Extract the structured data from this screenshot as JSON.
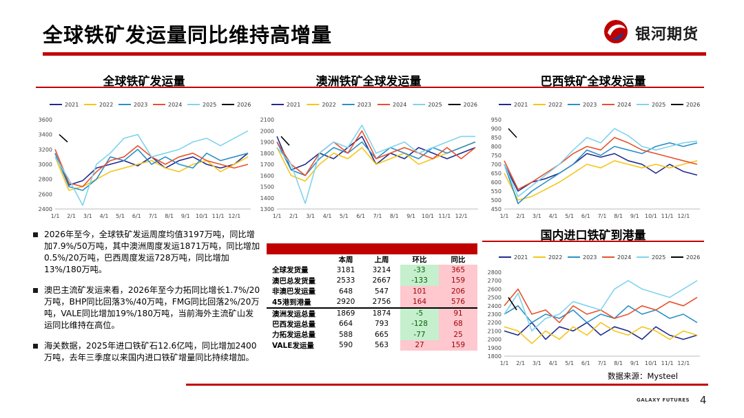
{
  "page": {
    "title": "全球铁矿发运量同比维持高增量",
    "logo_text": "银河期货",
    "source": "数据来源：Mysteel",
    "footer_brand": "GALAXY FUTURES",
    "page_number": "4"
  },
  "colors": {
    "accent": "#c00000",
    "s2021": "#1f2a8c",
    "s2022": "#f5c518",
    "s2023": "#2a8fc7",
    "s2024": "#e8502a",
    "s2025": "#7fd3ee",
    "s2026": "#000000"
  },
  "bullets": [
    "2026年至今，全球铁矿发运周度均值3197万吨，同比增加7.9%/50万吨，其中澳洲周度发运1871万吨，同比增加0.5%/20万吨，巴西周度发运728万吨，同比增加13%/180万吨。",
    "澳巴主流矿发运来看，2026年至今力拓同比增长1.7%/20万吨，BHP同比回落3%/40万吨，FMG同比回落2%/20万吨，VALE同比增加19%/180万吨，当前海外主流矿山发运同比维持在高位。",
    "海关数据，2025年进口铁矿石12.6亿吨，同比增加2400万吨，去年三季度以来国内进口铁矿增量同比持续增加。"
  ],
  "table": {
    "headers": [
      "",
      "本周",
      "上周",
      "环比",
      "同比"
    ],
    "rows": [
      {
        "name": "全球发货量",
        "cur": "3181",
        "prev": "3214",
        "wow": "-33",
        "yoy": "365"
      },
      {
        "name": "澳巴总发货量",
        "cur": "2533",
        "prev": "2667",
        "wow": "-133",
        "yoy": "159"
      },
      {
        "name": "非澳巴发运量",
        "cur": "648",
        "prev": "547",
        "wow": "101",
        "yoy": "206"
      },
      {
        "name": "45港到港量",
        "cur": "2920",
        "prev": "2756",
        "wow": "164",
        "yoy": "576"
      },
      {
        "name": "澳洲发运总量",
        "cur": "1869",
        "prev": "1874",
        "wow": "-5",
        "yoy": "91"
      },
      {
        "name": "巴西发运总量",
        "cur": "664",
        "prev": "793",
        "wow": "-128",
        "yoy": "68"
      },
      {
        "name": "力拓发运总量",
        "cur": "588",
        "prev": "665",
        "wow": "-77",
        "yoy": "25"
      },
      {
        "name": "VALE发运量",
        "cur": "590",
        "prev": "563",
        "wow": "27",
        "yoy": "159"
      }
    ]
  },
  "chart_data": [
    {
      "type": "line",
      "title": "全球铁矿发运量",
      "x_ticks": [
        "1/1",
        "2/1",
        "3/1",
        "4/1",
        "5/1",
        "6/1",
        "7/1",
        "8/1",
        "9/1",
        "10/1",
        "11/1",
        "12/1"
      ],
      "y_ticks": [
        "3600",
        "3400",
        "3200",
        "3000",
        "2800",
        "2600",
        "2400"
      ],
      "ylim": [
        2400,
        3600
      ],
      "series": [
        {
          "name": "2021",
          "values": [
            3150,
            2720,
            2780,
            2950,
            3000,
            3050,
            2980,
            3100,
            2950,
            3050,
            3100,
            3000,
            2950,
            3000,
            3150
          ]
        },
        {
          "name": "2022",
          "values": [
            3100,
            2650,
            2700,
            2800,
            2900,
            2950,
            3000,
            3050,
            2950,
            2900,
            3000,
            3050,
            2900,
            3000,
            3100
          ]
        },
        {
          "name": "2023",
          "values": [
            3150,
            2700,
            2650,
            2800,
            3100,
            3050,
            3200,
            3000,
            3100,
            3000,
            2950,
            3150,
            3050,
            3100,
            3150
          ]
        },
        {
          "name": "2024",
          "values": [
            3200,
            2750,
            2700,
            2900,
            3050,
            3100,
            3250,
            3100,
            3000,
            3100,
            3150,
            3050,
            3000,
            2950,
            3000
          ]
        },
        {
          "name": "2025",
          "values": [
            3100,
            2800,
            2450,
            3000,
            3150,
            3350,
            3400,
            3100,
            3150,
            3200,
            3300,
            3350,
            3250,
            3350,
            3450
          ]
        },
        {
          "name": "2026",
          "values": [
            3400,
            3300
          ]
        }
      ]
    },
    {
      "type": "line",
      "title": "澳洲铁矿全球发运量",
      "x_ticks": [
        "1/1",
        "2/1",
        "3/1",
        "4/1",
        "5/1",
        "6/1",
        "7/1",
        "8/1",
        "9/1",
        "10/1",
        "11/1",
        "12/1"
      ],
      "y_ticks": [
        "2100",
        "2000",
        "1900",
        "1800",
        "1700",
        "1600",
        "1500",
        "1400",
        "1300"
      ],
      "ylim": [
        1300,
        2100
      ],
      "series": [
        {
          "name": "2021",
          "values": [
            1950,
            1650,
            1700,
            1800,
            1750,
            1850,
            1950,
            1700,
            1800,
            1750,
            1850,
            1800,
            1750,
            1800,
            1850
          ]
        },
        {
          "name": "2022",
          "values": [
            1850,
            1600,
            1550,
            1700,
            1800,
            1750,
            1850,
            1700,
            1750,
            1800,
            1700,
            1750,
            1800,
            1850,
            1900
          ]
        },
        {
          "name": "2023",
          "values": [
            1900,
            1650,
            1600,
            1750,
            1850,
            1800,
            1900,
            1750,
            1850,
            1800,
            1750,
            1850,
            1800,
            1850,
            1900
          ]
        },
        {
          "name": "2024",
          "values": [
            1900,
            1700,
            1600,
            1800,
            1900,
            1800,
            2000,
            1750,
            1800,
            1850,
            1800,
            1750,
            1850,
            1750,
            1850
          ]
        },
        {
          "name": "2025",
          "values": [
            1850,
            1700,
            1350,
            1800,
            1900,
            1850,
            2050,
            1800,
            1850,
            1900,
            1800,
            1850,
            1900,
            1950,
            1950
          ]
        },
        {
          "name": "2026",
          "values": [
            1950,
            1870
          ]
        }
      ]
    },
    {
      "type": "line",
      "title": "巴西铁矿全球发运量",
      "x_ticks": [
        "1/1",
        "2/1",
        "3/1",
        "4/1",
        "5/1",
        "6/1",
        "7/1",
        "8/1",
        "9/1",
        "10/1",
        "11/1",
        "12/1"
      ],
      "y_ticks": [
        "950",
        "900",
        "850",
        "800",
        "750",
        "700",
        "650",
        "600",
        "550",
        "500",
        "450"
      ],
      "ylim": [
        450,
        950
      ],
      "series": [
        {
          "name": "2021",
          "values": [
            700,
            550,
            600,
            620,
            650,
            700,
            760,
            740,
            760,
            720,
            700,
            650,
            700,
            660,
            640
          ]
        },
        {
          "name": "2022",
          "values": [
            650,
            500,
            520,
            560,
            600,
            650,
            700,
            680,
            720,
            700,
            680,
            700,
            680,
            700,
            720
          ]
        },
        {
          "name": "2023",
          "values": [
            700,
            480,
            550,
            600,
            650,
            700,
            780,
            750,
            800,
            780,
            760,
            800,
            820,
            800,
            820
          ]
        },
        {
          "name": "2024",
          "values": [
            720,
            560,
            600,
            650,
            700,
            760,
            800,
            780,
            850,
            820,
            780,
            760,
            740,
            720,
            700
          ]
        },
        {
          "name": "2025",
          "values": [
            700,
            520,
            580,
            640,
            700,
            780,
            850,
            820,
            900,
            860,
            800,
            780,
            800,
            820,
            830
          ]
        },
        {
          "name": "2026",
          "values": [
            900,
            850
          ]
        }
      ]
    },
    {
      "type": "line",
      "title": "国内进口铁矿到港量",
      "x_ticks": [
        "1/1",
        "2/1",
        "3/1",
        "4/1",
        "5/1",
        "6/1",
        "7/1",
        "8/1",
        "9/1",
        "10/1",
        "11/1",
        "12/1"
      ],
      "y_ticks": [
        "2800",
        "2700",
        "2600",
        "2500",
        "2400",
        "2300",
        "2200",
        "2100",
        "2000",
        "1900",
        "1800"
      ],
      "ylim": [
        1800,
        2800
      ],
      "series": [
        {
          "name": "2021",
          "values": [
            2100,
            2050,
            2200,
            2000,
            2150,
            2100,
            2200,
            2050,
            2150,
            2100,
            2000,
            2150,
            2050,
            2000,
            2050
          ]
        },
        {
          "name": "2022",
          "values": [
            2150,
            2100,
            1950,
            2100,
            2000,
            2150,
            2050,
            2200,
            2100,
            2050,
            2150,
            2100,
            2000,
            2100,
            2050
          ]
        },
        {
          "name": "2023",
          "values": [
            2300,
            2400,
            2200,
            2300,
            2250,
            2350,
            2200,
            2300,
            2250,
            2400,
            2300,
            2350,
            2250,
            2300,
            2200
          ]
        },
        {
          "name": "2024",
          "values": [
            2400,
            2600,
            2300,
            2350,
            2200,
            2400,
            2300,
            2350,
            2250,
            2300,
            2400,
            2350,
            2450,
            2400,
            2500
          ]
        },
        {
          "name": "2025",
          "values": [
            2300,
            2550,
            2100,
            2250,
            2300,
            2450,
            2400,
            2350,
            2600,
            2700,
            2600,
            2550,
            2500,
            2600,
            2700
          ]
        },
        {
          "name": "2026",
          "values": [
            2500,
            2350
          ]
        }
      ]
    }
  ]
}
